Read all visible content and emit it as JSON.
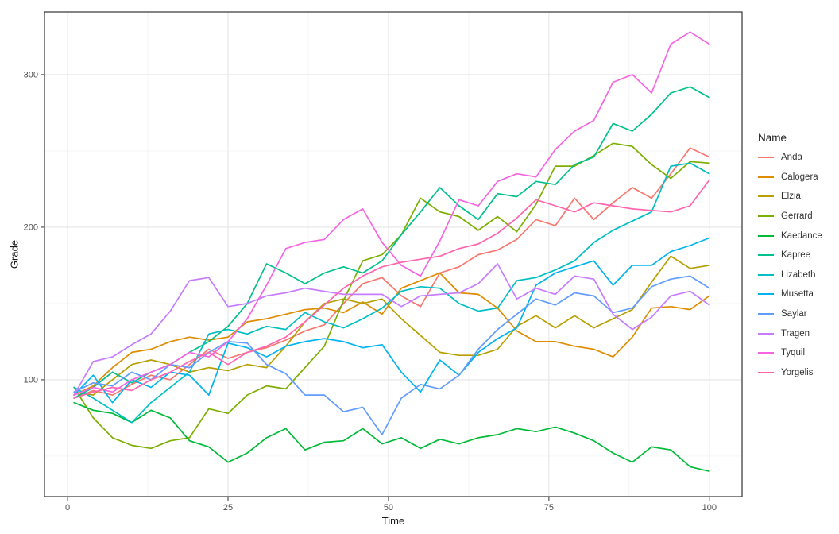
{
  "chart_data": {
    "type": "line",
    "title": "",
    "xlabel": "Time",
    "ylabel": "Grade",
    "legend_title": "Name",
    "legend_position": "right",
    "grid": true,
    "x_ticks": [
      0,
      25,
      50,
      75,
      100
    ],
    "y_ticks": [
      100,
      200,
      300
    ],
    "x_minor_ticks": [
      12.5,
      37.5,
      62.5,
      87.5
    ],
    "y_minor_ticks": [
      50,
      150,
      250
    ],
    "xlim": [
      -3.6,
      105.1
    ],
    "ylim": [
      23.4,
      341.1
    ],
    "x": [
      1,
      4,
      7,
      10,
      13,
      16,
      19,
      22,
      25,
      28,
      31,
      34,
      37,
      40,
      43,
      46,
      49,
      52,
      55,
      58,
      61,
      64,
      67,
      70,
      73,
      76,
      79,
      82,
      85,
      88,
      91,
      94,
      97,
      100
    ],
    "series": [
      {
        "name": "Anda",
        "color": "#F8766D",
        "values": [
          88,
          93,
          90,
          97,
          103,
          100,
          110,
          120,
          114,
          118,
          121,
          126,
          132,
          136,
          150,
          163,
          167,
          155,
          148,
          170,
          174,
          182,
          185,
          192,
          205,
          201,
          219,
          205,
          216,
          226,
          219,
          235,
          252,
          246
        ]
      },
      {
        "name": "Calogera",
        "color": "#DE8C00",
        "values": [
          90,
          96,
          108,
          118,
          120,
          125,
          128,
          126,
          128,
          138,
          140,
          143,
          146,
          147,
          144,
          151,
          143,
          160,
          165,
          170,
          157,
          156,
          147,
          132,
          125,
          125,
          122,
          120,
          115,
          128,
          147,
          148,
          146,
          155
        ]
      },
      {
        "name": "Elzia",
        "color": "#B79F00",
        "values": [
          92,
          90,
          100,
          110,
          113,
          110,
          105,
          108,
          106,
          110,
          108,
          122,
          138,
          150,
          153,
          150,
          153,
          140,
          129,
          118,
          116,
          116,
          120,
          135,
          142,
          134,
          142,
          134,
          140,
          146,
          164,
          181,
          173,
          175
        ]
      },
      {
        "name": "Gerrard",
        "color": "#7CAE00",
        "values": [
          95,
          75,
          62,
          57,
          55,
          60,
          62,
          81,
          78,
          90,
          96,
          94,
          108,
          122,
          152,
          178,
          182,
          195,
          219,
          210,
          207,
          198,
          207,
          197,
          215,
          240,
          240,
          247,
          255,
          253,
          241,
          232,
          243,
          242
        ]
      },
      {
        "name": "Kaedance",
        "color": "#00BA38",
        "values": [
          85,
          80,
          78,
          72,
          80,
          75,
          60,
          56,
          46,
          52,
          62,
          68,
          54,
          59,
          60,
          68,
          58,
          62,
          55,
          61,
          58,
          62,
          64,
          68,
          66,
          69,
          65,
          60,
          52,
          46,
          56,
          54,
          43,
          40
        ]
      },
      {
        "name": "Kapree",
        "color": "#00C08B",
        "values": [
          88,
          95,
          105,
          98,
          105,
          110,
          118,
          125,
          135,
          150,
          176,
          170,
          163,
          170,
          174,
          170,
          178,
          195,
          210,
          226,
          214,
          205,
          222,
          220,
          230,
          228,
          241,
          246,
          268,
          263,
          274,
          288,
          292,
          285
        ]
      },
      {
        "name": "Lizabeth",
        "color": "#00BFC4",
        "values": [
          95,
          88,
          80,
          72,
          85,
          95,
          105,
          130,
          133,
          130,
          135,
          133,
          144,
          138,
          134,
          140,
          147,
          158,
          161,
          160,
          150,
          145,
          147,
          165,
          167,
          172,
          178,
          190,
          198,
          204,
          210,
          240,
          242,
          235
        ]
      },
      {
        "name": "Musetta",
        "color": "#00B4F0",
        "values": [
          90,
          103,
          85,
          100,
          95,
          105,
          103,
          90,
          124,
          121,
          115,
          122,
          125,
          127,
          125,
          121,
          123,
          105,
          92,
          113,
          103,
          118,
          127,
          134,
          162,
          170,
          174,
          178,
          162,
          175,
          175,
          184,
          188,
          193
        ]
      },
      {
        "name": "Saylar",
        "color": "#619CFF",
        "values": [
          92,
          98,
          96,
          105,
          100,
          110,
          108,
          118,
          125,
          124,
          110,
          104,
          90,
          90,
          79,
          82,
          64,
          88,
          97,
          94,
          103,
          120,
          133,
          143,
          153,
          149,
          157,
          155,
          144,
          147,
          161,
          166,
          168,
          160
        ]
      },
      {
        "name": "Tragen",
        "color": "#C77CFF",
        "values": [
          90,
          112,
          115,
          123,
          130,
          145,
          165,
          167,
          148,
          150,
          155,
          157,
          160,
          158,
          156,
          156,
          156,
          148,
          155,
          156,
          157,
          163,
          176,
          153,
          160,
          156,
          168,
          166,
          143,
          133,
          141,
          155,
          158,
          149
        ]
      },
      {
        "name": "Tyquil",
        "color": "#F564E3",
        "values": [
          90,
          95,
          92,
          100,
          105,
          110,
          118,
          115,
          125,
          140,
          162,
          186,
          190,
          192,
          205,
          212,
          190,
          175,
          168,
          191,
          218,
          214,
          230,
          235,
          233,
          251,
          263,
          270,
          295,
          300,
          288,
          320,
          328,
          320
        ]
      },
      {
        "name": "Yorgelis",
        "color": "#FF64B0",
        "values": [
          88,
          92,
          95,
          93,
          100,
          105,
          112,
          118,
          110,
          118,
          122,
          128,
          138,
          149,
          160,
          168,
          174,
          177,
          179,
          181,
          186,
          189,
          196,
          206,
          218,
          214,
          210,
          216,
          214,
          212,
          211,
          210,
          214,
          231
        ]
      }
    ]
  }
}
